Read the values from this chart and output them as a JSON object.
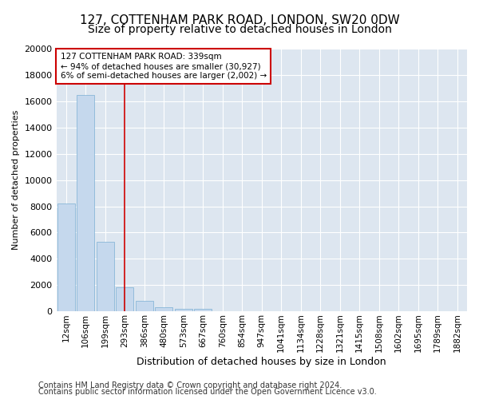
{
  "title": "127, COTTENHAM PARK ROAD, LONDON, SW20 0DW",
  "subtitle": "Size of property relative to detached houses in London",
  "xlabel": "Distribution of detached houses by size in London",
  "ylabel": "Number of detached properties",
  "footer_line1": "Contains HM Land Registry data © Crown copyright and database right 2024.",
  "footer_line2": "Contains public sector information licensed under the Open Government Licence v3.0.",
  "categories": [
    "12sqm",
    "106sqm",
    "199sqm",
    "293sqm",
    "386sqm",
    "480sqm",
    "573sqm",
    "667sqm",
    "760sqm",
    "854sqm",
    "947sqm",
    "1041sqm",
    "1134sqm",
    "1228sqm",
    "1321sqm",
    "1415sqm",
    "1508sqm",
    "1602sqm",
    "1695sqm",
    "1789sqm",
    "1882sqm"
  ],
  "values": [
    8200,
    16500,
    5300,
    1800,
    800,
    300,
    200,
    200,
    0,
    0,
    0,
    0,
    0,
    0,
    0,
    0,
    0,
    0,
    0,
    0,
    0
  ],
  "bar_color": "#c5d8ed",
  "bar_edge_color": "#7bafd4",
  "property_line_index": 3.0,
  "property_label_line1": "127 COTTENHAM PARK ROAD: 339sqm",
  "property_label_line2": "← 94% of detached houses are smaller (30,927)",
  "property_label_line3": "6% of semi-detached houses are larger (2,002) →",
  "annotation_box_color": "#cc0000",
  "ylim": [
    0,
    20000
  ],
  "yticks": [
    0,
    2000,
    4000,
    6000,
    8000,
    10000,
    12000,
    14000,
    16000,
    18000,
    20000
  ],
  "figure_background": "#ffffff",
  "plot_background_color": "#dde6f0",
  "grid_color": "#ffffff",
  "title_fontsize": 11,
  "subtitle_fontsize": 10,
  "ylabel_fontsize": 8,
  "xlabel_fontsize": 9,
  "tick_fontsize": 8,
  "xtick_fontsize": 7.5,
  "footer_fontsize": 7
}
